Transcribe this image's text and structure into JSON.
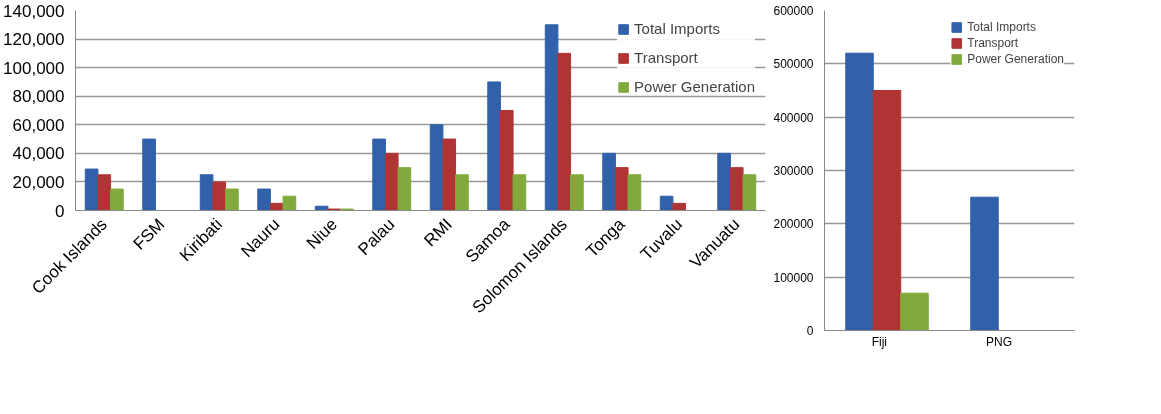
{
  "chart_data": [
    {
      "type": "bar",
      "categories": [
        "Cook Islands",
        "FSM",
        "Kiribati",
        "Nauru",
        "Niue",
        "Palau",
        "RMI",
        "Samoa",
        "Solomon Islands",
        "Tonga",
        "Tuvalu",
        "Vanuatu"
      ],
      "series": [
        {
          "name": "Total Imports",
          "color": "#3261ab",
          "values": [
            29000,
            50000,
            25000,
            15000,
            3000,
            50000,
            60000,
            90000,
            130000,
            40000,
            10000,
            40000
          ]
        },
        {
          "name": "Transport",
          "color": "#b03434",
          "values": [
            25000,
            0,
            20000,
            5000,
            1000,
            40000,
            50000,
            70000,
            110000,
            30000,
            5000,
            30000
          ]
        },
        {
          "name": "Power Generation",
          "color": "#80aa3c",
          "values": [
            15000,
            0,
            15000,
            10000,
            1000,
            30000,
            25000,
            25000,
            25000,
            25000,
            0,
            25000
          ]
        }
      ],
      "ylim": [
        0,
        140000
      ],
      "yticks": [
        {
          "value": 0,
          "label": "0"
        },
        {
          "value": 20000,
          "label": "20,000"
        },
        {
          "value": 40000,
          "label": "40,000"
        },
        {
          "value": 60000,
          "label": "60,000"
        },
        {
          "value": 80000,
          "label": "80,000"
        },
        {
          "value": 100000,
          "label": "100,000"
        },
        {
          "value": 120000,
          "label": "120,000"
        },
        {
          "value": 140000,
          "label": "140,000"
        }
      ],
      "grid": "y",
      "legend": "top right"
    },
    {
      "type": "bar",
      "categories": [
        "Fiji",
        "PNG"
      ],
      "series": [
        {
          "name": "Total Imports",
          "color": "#3261ab",
          "values": [
            520000,
            250000
          ]
        },
        {
          "name": "Transport",
          "color": "#b03434",
          "values": [
            450000,
            0
          ]
        },
        {
          "name": "Power Generation",
          "color": "#80aa3c",
          "values": [
            70000,
            0
          ]
        }
      ],
      "ylim": [
        0,
        600000
      ],
      "yticks": [
        0,
        100000,
        200000,
        300000,
        400000,
        500000,
        600000
      ],
      "grid": "y",
      "legend": "top right"
    }
  ]
}
